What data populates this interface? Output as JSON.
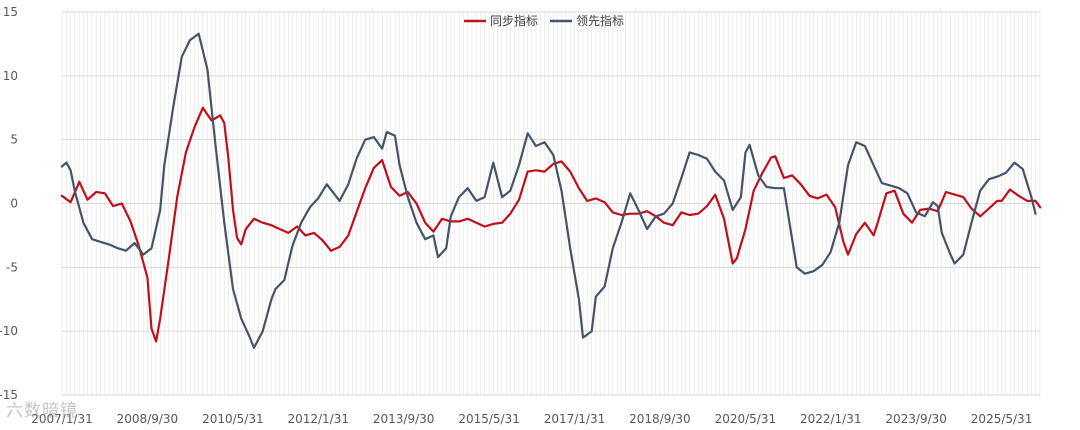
{
  "chart_data": {
    "type": "line",
    "title": "",
    "xlabel": "",
    "ylabel": "",
    "ylim": [
      -15,
      15
    ],
    "yticks": [
      15,
      10,
      5,
      0,
      -5,
      -10,
      -15
    ],
    "xlim": [
      2007.083,
      2026.167
    ],
    "x_tick_labels": [
      {
        "label": "2007/1/31",
        "x": 2007.083
      },
      {
        "label": "2008/9/30",
        "x": 2008.75
      },
      {
        "label": "2010/5/31",
        "x": 2010.417
      },
      {
        "label": "2012/1/31",
        "x": 2012.083
      },
      {
        "label": "2013/9/30",
        "x": 2013.75
      },
      {
        "label": "2015/5/31",
        "x": 2015.417
      },
      {
        "label": "2017/1/31",
        "x": 2017.083
      },
      {
        "label": "2018/9/30",
        "x": 2018.75
      },
      {
        "label": "2020/5/31",
        "x": 2020.417
      },
      {
        "label": "2022/1/31",
        "x": 2022.083
      },
      {
        "label": "2023/9/30",
        "x": 2023.75
      },
      {
        "label": "2025/5/31",
        "x": 2025.417
      }
    ],
    "grid": "horizontal and monthly vertical",
    "legend_position": "top-center",
    "series": [
      {
        "name": "同步指标",
        "color": "#c0101b",
        "points": [
          [
            2007.08,
            0.6
          ],
          [
            2007.25,
            0.1
          ],
          [
            2007.42,
            1.7
          ],
          [
            2007.58,
            0.3
          ],
          [
            2007.75,
            0.9
          ],
          [
            2007.92,
            0.8
          ],
          [
            2008.08,
            -0.2
          ],
          [
            2008.25,
            0.0
          ],
          [
            2008.42,
            -1.4
          ],
          [
            2008.58,
            -3.3
          ],
          [
            2008.75,
            -5.8
          ],
          [
            2008.83,
            -9.8
          ],
          [
            2008.92,
            -10.8
          ],
          [
            2009.0,
            -9.0
          ],
          [
            2009.17,
            -4.2
          ],
          [
            2009.33,
            0.5
          ],
          [
            2009.5,
            4.0
          ],
          [
            2009.67,
            6.0
          ],
          [
            2009.83,
            7.5
          ],
          [
            2010.0,
            6.5
          ],
          [
            2010.17,
            6.9
          ],
          [
            2010.25,
            6.3
          ],
          [
            2010.33,
            3.5
          ],
          [
            2010.42,
            -0.5
          ],
          [
            2010.5,
            -2.7
          ],
          [
            2010.58,
            -3.2
          ],
          [
            2010.67,
            -2.0
          ],
          [
            2010.83,
            -1.2
          ],
          [
            2011.0,
            -1.5
          ],
          [
            2011.17,
            -1.7
          ],
          [
            2011.33,
            -2.0
          ],
          [
            2011.5,
            -2.3
          ],
          [
            2011.67,
            -1.8
          ],
          [
            2011.83,
            -2.5
          ],
          [
            2012.0,
            -2.3
          ],
          [
            2012.17,
            -2.9
          ],
          [
            2012.33,
            -3.7
          ],
          [
            2012.5,
            -3.4
          ],
          [
            2012.67,
            -2.5
          ],
          [
            2012.83,
            -0.7
          ],
          [
            2013.0,
            1.2
          ],
          [
            2013.17,
            2.8
          ],
          [
            2013.33,
            3.4
          ],
          [
            2013.5,
            1.3
          ],
          [
            2013.67,
            0.6
          ],
          [
            2013.83,
            0.9
          ],
          [
            2014.0,
            0.0
          ],
          [
            2014.17,
            -1.5
          ],
          [
            2014.33,
            -2.2
          ],
          [
            2014.5,
            -1.2
          ],
          [
            2014.67,
            -1.4
          ],
          [
            2014.83,
            -1.4
          ],
          [
            2015.0,
            -1.2
          ],
          [
            2015.17,
            -1.5
          ],
          [
            2015.33,
            -1.8
          ],
          [
            2015.5,
            -1.6
          ],
          [
            2015.67,
            -1.5
          ],
          [
            2015.83,
            -0.8
          ],
          [
            2016.0,
            0.3
          ],
          [
            2016.17,
            2.5
          ],
          [
            2016.33,
            2.6
          ],
          [
            2016.5,
            2.5
          ],
          [
            2016.67,
            3.1
          ],
          [
            2016.83,
            3.3
          ],
          [
            2017.0,
            2.5
          ],
          [
            2017.17,
            1.2
          ],
          [
            2017.33,
            0.2
          ],
          [
            2017.5,
            0.4
          ],
          [
            2017.67,
            0.1
          ],
          [
            2017.83,
            -0.7
          ],
          [
            2018.0,
            -0.9
          ],
          [
            2018.17,
            -0.8
          ],
          [
            2018.33,
            -0.8
          ],
          [
            2018.5,
            -0.6
          ],
          [
            2018.67,
            -1.0
          ],
          [
            2018.83,
            -1.5
          ],
          [
            2019.0,
            -1.7
          ],
          [
            2019.17,
            -0.7
          ],
          [
            2019.33,
            -0.9
          ],
          [
            2019.5,
            -0.8
          ],
          [
            2019.67,
            -0.2
          ],
          [
            2019.83,
            0.7
          ],
          [
            2020.0,
            -1.2
          ],
          [
            2020.17,
            -4.7
          ],
          [
            2020.25,
            -4.3
          ],
          [
            2020.42,
            -2.0
          ],
          [
            2020.58,
            1.0
          ],
          [
            2020.75,
            2.4
          ],
          [
            2020.92,
            3.6
          ],
          [
            2021.0,
            3.7
          ],
          [
            2021.17,
            2.0
          ],
          [
            2021.33,
            2.2
          ],
          [
            2021.5,
            1.5
          ],
          [
            2021.67,
            0.6
          ],
          [
            2021.83,
            0.4
          ],
          [
            2022.0,
            0.7
          ],
          [
            2022.17,
            -0.3
          ],
          [
            2022.33,
            -3.0
          ],
          [
            2022.42,
            -4.0
          ],
          [
            2022.58,
            -2.4
          ],
          [
            2022.75,
            -1.5
          ],
          [
            2022.92,
            -2.5
          ],
          [
            2023.0,
            -1.5
          ],
          [
            2023.17,
            0.8
          ],
          [
            2023.33,
            1.0
          ],
          [
            2023.5,
            -0.8
          ],
          [
            2023.67,
            -1.5
          ],
          [
            2023.83,
            -0.5
          ],
          [
            2024.0,
            -0.4
          ],
          [
            2024.17,
            -0.6
          ],
          [
            2024.33,
            0.9
          ],
          [
            2024.5,
            0.7
          ],
          [
            2024.67,
            0.5
          ],
          [
            2024.83,
            -0.4
          ],
          [
            2025.0,
            -1.0
          ],
          [
            2025.17,
            -0.4
          ],
          [
            2025.33,
            0.2
          ],
          [
            2025.42,
            0.2
          ],
          [
            2025.58,
            1.1
          ],
          [
            2025.75,
            0.6
          ],
          [
            2025.92,
            0.2
          ],
          [
            2026.08,
            0.2
          ],
          [
            2026.17,
            -0.3
          ]
        ]
      },
      {
        "name": "领先指标",
        "color": "#44546a",
        "points": [
          [
            2007.08,
            2.9
          ],
          [
            2007.17,
            3.2
          ],
          [
            2007.25,
            2.6
          ],
          [
            2007.33,
            1.0
          ],
          [
            2007.5,
            -1.5
          ],
          [
            2007.67,
            -2.8
          ],
          [
            2007.83,
            -3.0
          ],
          [
            2008.0,
            -3.2
          ],
          [
            2008.17,
            -3.5
          ],
          [
            2008.33,
            -3.7
          ],
          [
            2008.5,
            -3.1
          ],
          [
            2008.67,
            -4.0
          ],
          [
            2008.83,
            -3.5
          ],
          [
            2009.0,
            -0.5
          ],
          [
            2009.08,
            3.0
          ],
          [
            2009.25,
            7.5
          ],
          [
            2009.42,
            11.5
          ],
          [
            2009.58,
            12.8
          ],
          [
            2009.75,
            13.3
          ],
          [
            2009.92,
            10.5
          ],
          [
            2010.08,
            4.5
          ],
          [
            2010.25,
            -1.5
          ],
          [
            2010.42,
            -6.7
          ],
          [
            2010.58,
            -9.0
          ],
          [
            2010.75,
            -10.5
          ],
          [
            2010.83,
            -11.3
          ],
          [
            2011.0,
            -10.0
          ],
          [
            2011.17,
            -7.5
          ],
          [
            2011.25,
            -6.7
          ],
          [
            2011.42,
            -6.0
          ],
          [
            2011.58,
            -3.3
          ],
          [
            2011.75,
            -1.5
          ],
          [
            2011.92,
            -0.3
          ],
          [
            2012.08,
            0.4
          ],
          [
            2012.25,
            1.5
          ],
          [
            2012.5,
            0.2
          ],
          [
            2012.67,
            1.5
          ],
          [
            2012.83,
            3.5
          ],
          [
            2013.0,
            5.0
          ],
          [
            2013.17,
            5.2
          ],
          [
            2013.33,
            4.3
          ],
          [
            2013.42,
            5.6
          ],
          [
            2013.58,
            5.3
          ],
          [
            2013.67,
            3.0
          ],
          [
            2013.83,
            0.5
          ],
          [
            2014.0,
            -1.5
          ],
          [
            2014.17,
            -2.8
          ],
          [
            2014.33,
            -2.5
          ],
          [
            2014.42,
            -4.2
          ],
          [
            2014.58,
            -3.5
          ],
          [
            2014.67,
            -1.0
          ],
          [
            2014.83,
            0.5
          ],
          [
            2015.0,
            1.2
          ],
          [
            2015.17,
            0.2
          ],
          [
            2015.33,
            0.5
          ],
          [
            2015.5,
            3.2
          ],
          [
            2015.67,
            0.5
          ],
          [
            2015.83,
            1.0
          ],
          [
            2016.0,
            3.0
          ],
          [
            2016.17,
            5.5
          ],
          [
            2016.33,
            4.5
          ],
          [
            2016.5,
            4.8
          ],
          [
            2016.67,
            3.8
          ],
          [
            2016.83,
            1.0
          ],
          [
            2017.0,
            -3.5
          ],
          [
            2017.17,
            -7.5
          ],
          [
            2017.25,
            -10.5
          ],
          [
            2017.42,
            -10.0
          ],
          [
            2017.5,
            -7.3
          ],
          [
            2017.67,
            -6.5
          ],
          [
            2017.83,
            -3.5
          ],
          [
            2018.0,
            -1.5
          ],
          [
            2018.17,
            0.8
          ],
          [
            2018.33,
            -0.5
          ],
          [
            2018.5,
            -2.0
          ],
          [
            2018.67,
            -1.0
          ],
          [
            2018.83,
            -0.8
          ],
          [
            2019.0,
            0.0
          ],
          [
            2019.17,
            2.0
          ],
          [
            2019.33,
            4.0
          ],
          [
            2019.5,
            3.8
          ],
          [
            2019.67,
            3.5
          ],
          [
            2019.83,
            2.5
          ],
          [
            2020.0,
            1.8
          ],
          [
            2020.17,
            -0.5
          ],
          [
            2020.33,
            0.5
          ],
          [
            2020.42,
            4.0
          ],
          [
            2020.5,
            4.6
          ],
          [
            2020.67,
            2.2
          ],
          [
            2020.83,
            1.3
          ],
          [
            2021.0,
            1.2
          ],
          [
            2021.17,
            1.2
          ],
          [
            2021.25,
            -0.8
          ],
          [
            2021.42,
            -5.0
          ],
          [
            2021.58,
            -5.5
          ],
          [
            2021.75,
            -5.3
          ],
          [
            2021.92,
            -4.8
          ],
          [
            2022.08,
            -3.8
          ],
          [
            2022.25,
            -1.5
          ],
          [
            2022.42,
            3.0
          ],
          [
            2022.58,
            4.8
          ],
          [
            2022.75,
            4.5
          ],
          [
            2022.92,
            3.0
          ],
          [
            2023.08,
            1.6
          ],
          [
            2023.25,
            1.4
          ],
          [
            2023.42,
            1.2
          ],
          [
            2023.58,
            0.8
          ],
          [
            2023.75,
            -0.7
          ],
          [
            2023.92,
            -1.0
          ],
          [
            2024.08,
            0.1
          ],
          [
            2024.17,
            -0.2
          ],
          [
            2024.25,
            -2.3
          ],
          [
            2024.42,
            -4.0
          ],
          [
            2024.5,
            -4.7
          ],
          [
            2024.67,
            -4.0
          ],
          [
            2024.83,
            -1.5
          ],
          [
            2025.0,
            1.0
          ],
          [
            2025.17,
            1.9
          ],
          [
            2025.33,
            2.1
          ],
          [
            2025.5,
            2.4
          ],
          [
            2025.67,
            3.2
          ],
          [
            2025.83,
            2.7
          ],
          [
            2026.0,
            0.5
          ],
          [
            2026.08,
            -0.8
          ]
        ]
      }
    ]
  },
  "watermark": "六数暗镜"
}
